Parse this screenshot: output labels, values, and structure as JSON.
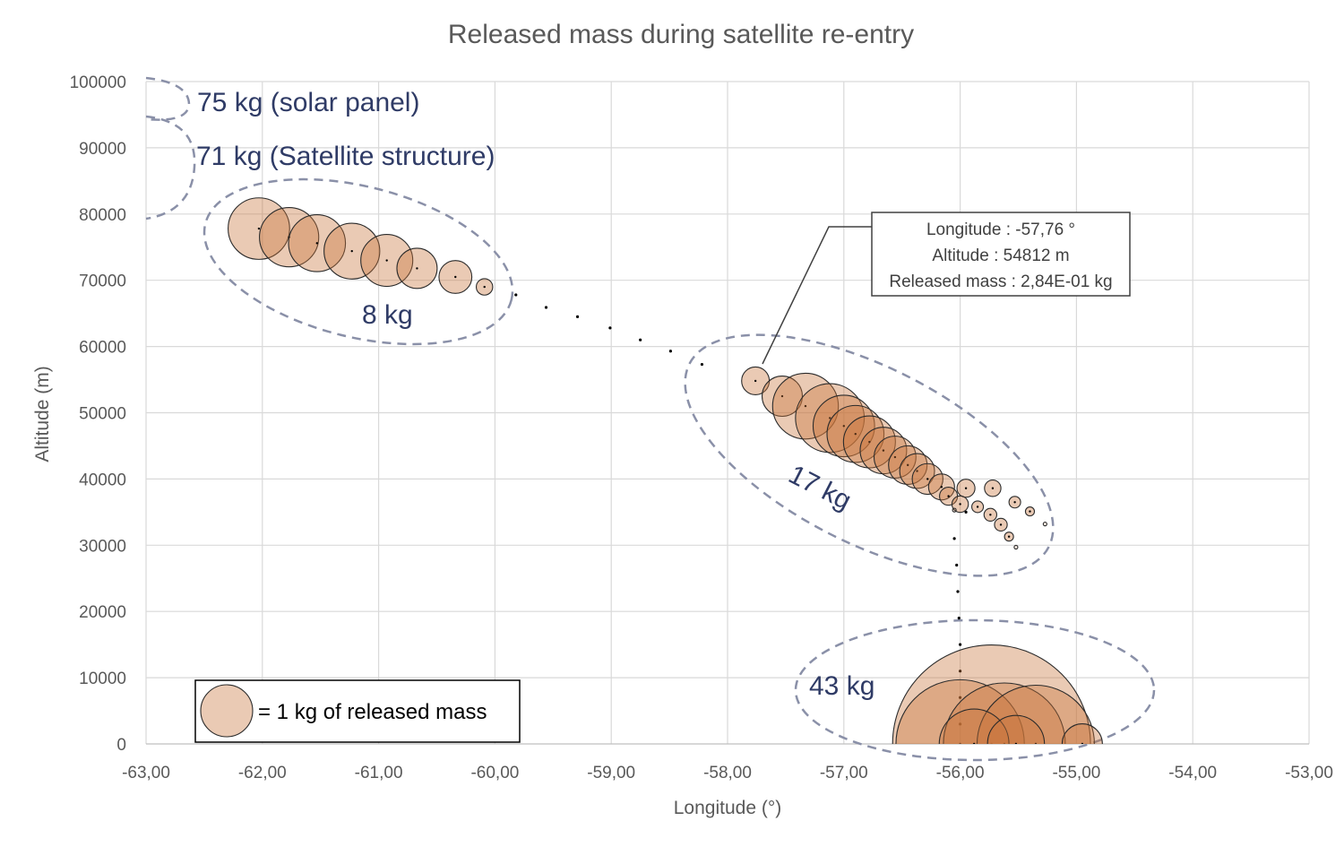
{
  "chart_data": {
    "type": "scatter",
    "title": "Released mass during satellite re-entry",
    "xlabel": "Longitude (°)",
    "ylabel": "Altitude (m)",
    "xlim": [
      -63,
      -53
    ],
    "ylim": [
      0,
      100000
    ],
    "x_ticks": [
      "-63,00",
      "-62,00",
      "-61,00",
      "-60,00",
      "-59,00",
      "-58,00",
      "-57,00",
      "-56,00",
      "-55,00",
      "-54,00",
      "-53,00"
    ],
    "y_ticks": [
      "0",
      "10000",
      "20000",
      "30000",
      "40000",
      "50000",
      "60000",
      "70000",
      "80000",
      "90000",
      "100000"
    ],
    "grid": true,
    "bubble_color": "#c8743a",
    "annotation_color": "#2f3b66",
    "trajectory": [
      {
        "x": -59.82,
        "y": 67800
      },
      {
        "x": -59.56,
        "y": 65900
      },
      {
        "x": -59.29,
        "y": 64500
      },
      {
        "x": -59.01,
        "y": 62800
      },
      {
        "x": -58.75,
        "y": 61000
      },
      {
        "x": -58.49,
        "y": 59300
      },
      {
        "x": -58.22,
        "y": 57300
      },
      {
        "x": -55.95,
        "y": 35000
      },
      {
        "x": -56.05,
        "y": 31000
      },
      {
        "x": -56.03,
        "y": 27000
      },
      {
        "x": -56.02,
        "y": 23000
      },
      {
        "x": -56.01,
        "y": 19000
      },
      {
        "x": -56.0,
        "y": 15000
      },
      {
        "x": -56.0,
        "y": 11000
      },
      {
        "x": -56.0,
        "y": 7000
      },
      {
        "x": -56.0,
        "y": 3000
      }
    ],
    "series": [
      {
        "group": "8 kg",
        "points": [
          {
            "x": -62.03,
            "y": 77800,
            "mass": 1.4
          },
          {
            "x": -61.77,
            "y": 76500,
            "mass": 1.3
          },
          {
            "x": -61.53,
            "y": 75600,
            "mass": 1.2
          },
          {
            "x": -61.23,
            "y": 74400,
            "mass": 1.15
          },
          {
            "x": -60.93,
            "y": 73000,
            "mass": 1.0
          },
          {
            "x": -60.67,
            "y": 71800,
            "mass": 0.6
          },
          {
            "x": -60.34,
            "y": 70500,
            "mass": 0.4
          },
          {
            "x": -60.09,
            "y": 69000,
            "mass": 0.1
          }
        ]
      },
      {
        "group": "17 kg",
        "points": [
          {
            "x": -57.76,
            "y": 54812,
            "mass": 0.284
          },
          {
            "x": -57.53,
            "y": 52500,
            "mass": 0.6
          },
          {
            "x": -57.33,
            "y": 51000,
            "mass": 1.6
          },
          {
            "x": -57.12,
            "y": 49200,
            "mass": 1.75
          },
          {
            "x": -57.0,
            "y": 48000,
            "mass": 1.4
          },
          {
            "x": -56.9,
            "y": 46800,
            "mass": 1.2
          },
          {
            "x": -56.78,
            "y": 45600,
            "mass": 1.0
          },
          {
            "x": -56.66,
            "y": 44300,
            "mass": 0.8
          },
          {
            "x": -56.56,
            "y": 43300,
            "mass": 0.65
          },
          {
            "x": -56.45,
            "y": 42100,
            "mass": 0.55
          },
          {
            "x": -56.37,
            "y": 41200,
            "mass": 0.45
          },
          {
            "x": -56.28,
            "y": 40000,
            "mass": 0.35
          },
          {
            "x": -56.16,
            "y": 38800,
            "mass": 0.25
          },
          {
            "x": -56.1,
            "y": 37400,
            "mass": 0.12
          },
          {
            "x": -55.95,
            "y": 38600,
            "mass": 0.12
          },
          {
            "x": -56.0,
            "y": 36200,
            "mass": 0.1
          },
          {
            "x": -55.72,
            "y": 38600,
            "mass": 0.1
          },
          {
            "x": -55.85,
            "y": 35800,
            "mass": 0.05
          },
          {
            "x": -55.74,
            "y": 34600,
            "mass": 0.06
          },
          {
            "x": -55.53,
            "y": 36500,
            "mass": 0.05
          },
          {
            "x": -55.65,
            "y": 33100,
            "mass": 0.06
          },
          {
            "x": -55.58,
            "y": 31300,
            "mass": 0.03
          },
          {
            "x": -55.4,
            "y": 35100,
            "mass": 0.03
          },
          {
            "x": -55.52,
            "y": 29700,
            "mass": 0.005
          },
          {
            "x": -55.27,
            "y": 33200,
            "mass": 0.005
          },
          {
            "x": -56.05,
            "y": 35300,
            "mass": 0.005
          }
        ]
      },
      {
        "group": "43 kg",
        "points": [
          {
            "x": -55.73,
            "y": 0,
            "mass": 14.5
          },
          {
            "x": -56.0,
            "y": 0,
            "mass": 6.1
          },
          {
            "x": -55.62,
            "y": 0,
            "mass": 5.5
          },
          {
            "x": -55.35,
            "y": 0,
            "mass": 5.1
          },
          {
            "x": -55.88,
            "y": 0,
            "mass": 1.8
          },
          {
            "x": -55.52,
            "y": 0,
            "mass": 1.2
          },
          {
            "x": -54.95,
            "y": 0,
            "mass": 0.6
          }
        ]
      }
    ],
    "annotations": [
      {
        "id": "solar",
        "text": "75 kg (solar panel)"
      },
      {
        "id": "structure",
        "text": "71 kg (Satellite structure)"
      },
      {
        "id": "g8",
        "text": "8 kg"
      },
      {
        "id": "g17",
        "text": "17 kg"
      },
      {
        "id": "g43",
        "text": "43 kg"
      }
    ],
    "tooltip": {
      "line1": "Longitude : -57,76 °",
      "line2": "Altitude : 54812 m",
      "line3": "Released mass : 2,84E-01 kg"
    },
    "legend": {
      "text": "= 1 kg of released mass",
      "unit_mass": 1,
      "placement": "bottom-left"
    }
  }
}
